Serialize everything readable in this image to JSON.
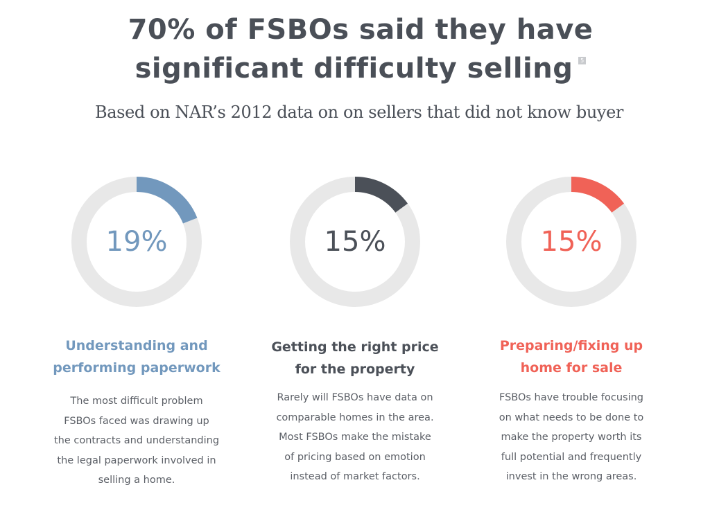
{
  "title": {
    "line1": "70% of FSBOs said they have",
    "line2": "significant difficulty selling",
    "footnote": "5"
  },
  "subtitle": "Based on NAR’s 2012 data on on sellers that did not know buyer",
  "colors": {
    "track": "#e8e8e8",
    "blue": "#7298bd",
    "dark": "#4b5058",
    "red": "#f06257",
    "text": "#4a4f57",
    "body": "#5b5f66"
  },
  "chart_data": [
    {
      "type": "pie",
      "value": 19,
      "label": "19%",
      "color": "#7298bd",
      "heading": [
        "Understanding and",
        "performing paperwork"
      ],
      "body": [
        "The most difficult problem",
        "FSBOs faced was drawing up",
        "the contracts and understanding",
        "the legal paperwork involved in",
        "selling a home."
      ]
    },
    {
      "type": "pie",
      "value": 15,
      "label": "15%",
      "color": "#4b5058",
      "heading": [
        "Getting the right price",
        "for the property"
      ],
      "body": [
        "Rarely will FSBOs have data on",
        "comparable homes in the area.",
        "Most FSBOs make the mistake",
        "of pricing based on emotion",
        "instead of market factors."
      ]
    },
    {
      "type": "pie",
      "value": 15,
      "label": "15%",
      "color": "#f06257",
      "heading": [
        "Preparing/fixing up",
        "home for sale"
      ],
      "body": [
        "FSBOs have trouble focusing",
        "on what needs to be done to",
        "make the property worth its",
        "full potential and frequently",
        "invest in the wrong areas."
      ]
    }
  ]
}
